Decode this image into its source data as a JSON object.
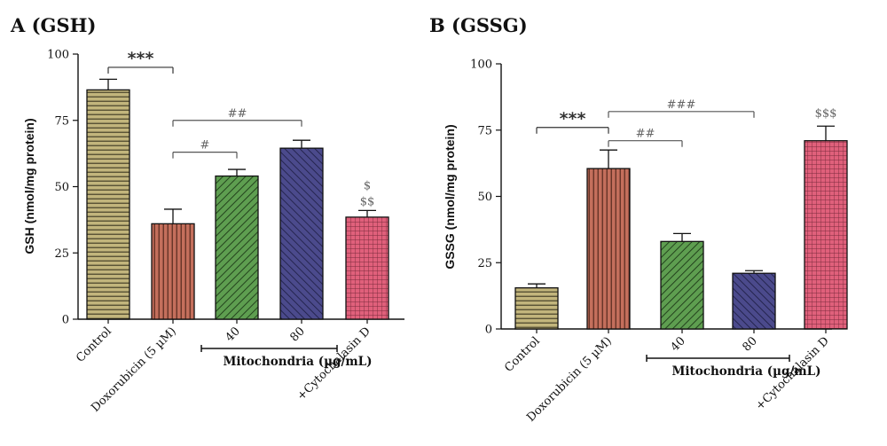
{
  "chart_data": [
    {
      "type": "bar",
      "title": "A (GSH)",
      "ylabel": "GSH (nmol/mg protein)",
      "ylim": [
        0,
        100
      ],
      "yticks": [
        "0",
        "25",
        "50",
        "75",
        "100"
      ],
      "categories": [
        "Control",
        "Doxorubicin (5 µM)",
        "40",
        "80",
        "+Cytochalasin D"
      ],
      "values": [
        86.5,
        36,
        54,
        64.5,
        38.5
      ],
      "errors": [
        4,
        5.5,
        2.5,
        3,
        2.5
      ],
      "colors": [
        "#c2b57c",
        "#c46f5c",
        "#5e9e50",
        "#4b4a8c",
        "#e0607b"
      ],
      "patterns": [
        "horizontal",
        "vertical",
        "diag-down",
        "diag-up",
        "grid"
      ],
      "group_label": "Mitochondria (µg/mL)",
      "group_members": [
        2,
        3
      ],
      "annotations": [
        {
          "text": "***",
          "style": "bold",
          "from": 0,
          "to": 1,
          "y": 95
        },
        {
          "text": "##",
          "style": "grey",
          "from": 1,
          "to": 3,
          "y": 75
        },
        {
          "text": "#",
          "style": "grey",
          "from": 1,
          "to": 2,
          "y": 63
        },
        {
          "text": "$",
          "style": "grey",
          "at": 4,
          "y": 49
        },
        {
          "text": "$$",
          "style": "grey",
          "at": 4,
          "y": 43
        }
      ]
    },
    {
      "type": "bar",
      "title": "B (GSSG)",
      "ylabel": "GSSG (nmol/mg protein)",
      "ylim": [
        0,
        100
      ],
      "yticks": [
        "0",
        "25",
        "50",
        "75",
        "100"
      ],
      "categories": [
        "Control",
        "Doxorubicin (5 µM)",
        "40",
        "80",
        "+Cytochalasin D"
      ],
      "values": [
        15.5,
        60.5,
        33,
        21,
        71
      ],
      "errors": [
        1.5,
        7,
        3,
        1,
        5.5
      ],
      "colors": [
        "#c2b57c",
        "#c46f5c",
        "#5e9e50",
        "#4b4a8c",
        "#e0607b"
      ],
      "patterns": [
        "horizontal",
        "vertical",
        "diag-down",
        "diag-up",
        "grid"
      ],
      "group_label": "Mitochondria (µg/mL)",
      "group_members": [
        2,
        3
      ],
      "annotations": [
        {
          "text": "***",
          "style": "bold",
          "from": 0,
          "to": 1,
          "y": 76
        },
        {
          "text": "##",
          "style": "grey",
          "from": 1,
          "to": 2,
          "y": 71
        },
        {
          "text": "###",
          "style": "grey",
          "from": 1,
          "to": 3,
          "y": 82
        },
        {
          "text": "$$$",
          "style": "grey",
          "at": 4,
          "y": 80
        }
      ]
    }
  ]
}
